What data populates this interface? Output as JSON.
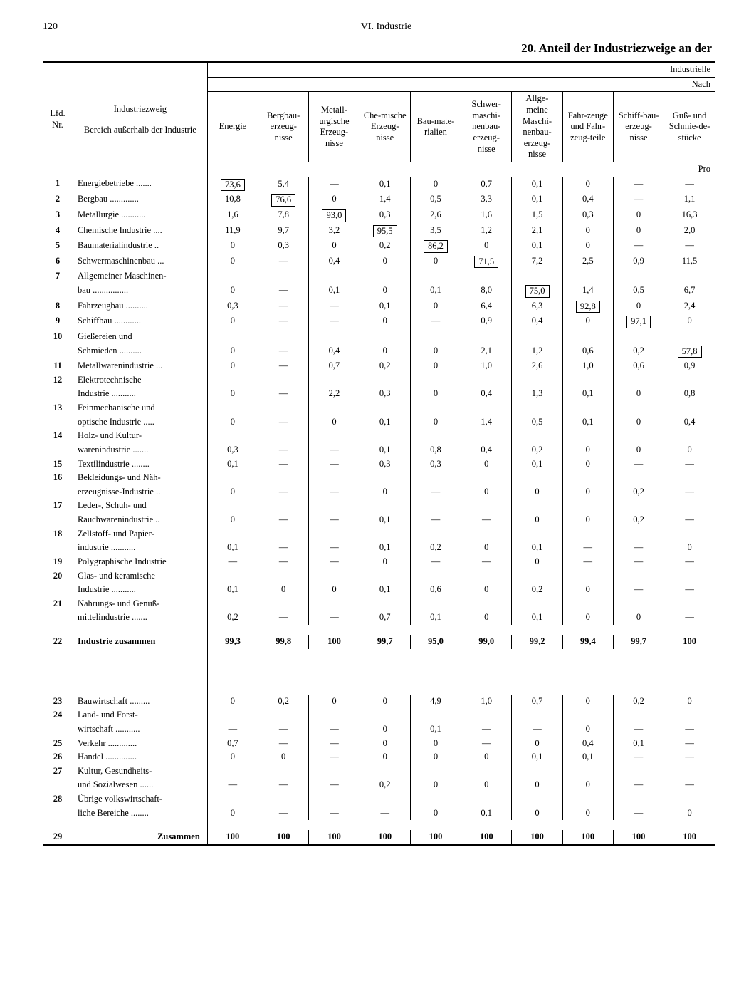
{
  "page_number": "120",
  "chapter": "VI. Industrie",
  "title": "20. Anteil der Industriezweige an der",
  "super_header_right": "Industrielle",
  "sub_header_right": "Nach",
  "unit_right": "Pro",
  "headers": {
    "col_nr": "Lfd.\nNr.",
    "col_name_top": "Industriezweig",
    "col_name_bot": "Bereich außerhalb der Industrie",
    "c1": "Energie",
    "c2": "Bergbau-erzeug-nisse",
    "c3": "Metall-urgische Erzeug-nisse",
    "c4": "Che-mische Erzeug-nisse",
    "c5": "Bau-mate-rialien",
    "c6": "Schwer-maschi-nenbau-erzeug-nisse",
    "c7": "Allge-meine Maschi-nenbau-erzeug-nisse",
    "c8": "Fahr-zeuge und Fahr-zeug-teile",
    "c9": "Schiff-bau-erzeug-nisse",
    "c10": "Guß- und Schmie-de-stücke"
  },
  "rows": [
    {
      "n": "1",
      "name": "Energiebetriebe .......",
      "v": [
        "73,6*",
        "5,4",
        "—",
        "0,1",
        "0",
        "0,7",
        "0,1",
        "0",
        "—",
        "—"
      ]
    },
    {
      "n": "2",
      "name": "Bergbau .............",
      "v": [
        "10,8",
        "76,6*",
        "0",
        "1,4",
        "0,5",
        "3,3",
        "0,1",
        "0,4",
        "—",
        "1,1"
      ]
    },
    {
      "n": "3",
      "name": "Metallurgie ...........",
      "v": [
        "1,6",
        "7,8",
        "93,0*",
        "0,3",
        "2,6",
        "1,6",
        "1,5",
        "0,3",
        "0",
        "16,3"
      ]
    },
    {
      "n": "4",
      "name": "Chemische Industrie ....",
      "v": [
        "11,9",
        "9,7",
        "3,2",
        "95,5*",
        "3,5",
        "1,2",
        "2,1",
        "0",
        "0",
        "2,0"
      ]
    },
    {
      "n": "5",
      "name": "Baumaterialindustrie ..",
      "v": [
        "0",
        "0,3",
        "0",
        "0,2",
        "86,2*",
        "0",
        "0,1",
        "0",
        "—",
        "—"
      ]
    },
    {
      "n": "6",
      "name": "Schwermaschinenbau ...",
      "v": [
        "0",
        "—",
        "0,4",
        "0",
        "0",
        "71,5*",
        "7,2",
        "2,5",
        "0,9",
        "11,5"
      ]
    },
    {
      "n": "7",
      "name": "Allgemeiner Maschinen-",
      "v": [
        "",
        "",
        "",
        "",
        "",
        "",
        "",
        "",
        "",
        ""
      ]
    },
    {
      "n": "",
      "name": "bau ................",
      "v": [
        "0",
        "—",
        "0,1",
        "0",
        "0,1",
        "8,0",
        "75,0*",
        "1,4",
        "0,5",
        "6,7"
      ]
    },
    {
      "n": "8",
      "name": "Fahrzeugbau ..........",
      "v": [
        "0,3",
        "—",
        "—",
        "0,1",
        "0",
        "6,4",
        "6,3",
        "92,8*",
        "0",
        "2,4"
      ]
    },
    {
      "n": "9",
      "name": "Schiffbau ............",
      "v": [
        "0",
        "—",
        "—",
        "0",
        "—",
        "0,9",
        "0,4",
        "0",
        "97,1*",
        "0"
      ]
    },
    {
      "n": "10",
      "name": "Gießereien und",
      "v": [
        "",
        "",
        "",
        "",
        "",
        "",
        "",
        "",
        "",
        ""
      ]
    },
    {
      "n": "",
      "name": "Schmieden ..........",
      "v": [
        "0",
        "—",
        "0,4",
        "0",
        "0",
        "2,1",
        "1,2",
        "0,6",
        "0,2",
        "57,8*"
      ]
    },
    {
      "n": "11",
      "name": "Metallwarenindustrie ...",
      "v": [
        "0",
        "—",
        "0,7",
        "0,2",
        "0",
        "1,0",
        "2,6",
        "1,0",
        "0,6",
        "0,9"
      ]
    },
    {
      "n": "12",
      "name": "Elektrotechnische",
      "v": [
        "",
        "",
        "",
        "",
        "",
        "",
        "",
        "",
        "",
        ""
      ]
    },
    {
      "n": "",
      "name": "Industrie ...........",
      "v": [
        "0",
        "—",
        "2,2",
        "0,3",
        "0",
        "0,4",
        "1,3",
        "0,1",
        "0",
        "0,8"
      ]
    },
    {
      "n": "13",
      "name": "Feinmechanische und",
      "v": [
        "",
        "",
        "",
        "",
        "",
        "",
        "",
        "",
        "",
        ""
      ]
    },
    {
      "n": "",
      "name": "optische Industrie .....",
      "v": [
        "0",
        "—",
        "0",
        "0,1",
        "0",
        "1,4",
        "0,5",
        "0,1",
        "0",
        "0,4"
      ]
    },
    {
      "n": "14",
      "name": "Holz- und Kultur-",
      "v": [
        "",
        "",
        "",
        "",
        "",
        "",
        "",
        "",
        "",
        ""
      ]
    },
    {
      "n": "",
      "name": "warenindustrie .......",
      "v": [
        "0,3",
        "—",
        "—",
        "0,1",
        "0,8",
        "0,4",
        "0,2",
        "0",
        "0",
        "0"
      ]
    },
    {
      "n": "15",
      "name": "Textilindustrie ........",
      "v": [
        "0,1",
        "—",
        "—",
        "0,3",
        "0,3",
        "0",
        "0,1",
        "0",
        "—",
        "—"
      ]
    },
    {
      "n": "16",
      "name": "Bekleidungs- und Näh-",
      "v": [
        "",
        "",
        "",
        "",
        "",
        "",
        "",
        "",
        "",
        ""
      ]
    },
    {
      "n": "",
      "name": "erzeugnisse-Industrie ..",
      "v": [
        "0",
        "—",
        "—",
        "0",
        "—",
        "0",
        "0",
        "0",
        "0,2",
        "—"
      ]
    },
    {
      "n": "17",
      "name": "Leder-, Schuh- und",
      "v": [
        "",
        "",
        "",
        "",
        "",
        "",
        "",
        "",
        "",
        ""
      ]
    },
    {
      "n": "",
      "name": "Rauchwarenindustrie ..",
      "v": [
        "0",
        "—",
        "—",
        "0,1",
        "—",
        "—",
        "0",
        "0",
        "0,2",
        "—"
      ]
    },
    {
      "n": "18",
      "name": "Zellstoff- und Papier-",
      "v": [
        "",
        "",
        "",
        "",
        "",
        "",
        "",
        "",
        "",
        ""
      ]
    },
    {
      "n": "",
      "name": "industrie ...........",
      "v": [
        "0,1",
        "—",
        "—",
        "0,1",
        "0,2",
        "0",
        "0,1",
        "—",
        "—",
        "0"
      ]
    },
    {
      "n": "19",
      "name": "Polygraphische Industrie",
      "v": [
        "—",
        "—",
        "—",
        "0",
        "—",
        "—",
        "0",
        "—",
        "—",
        "—"
      ]
    },
    {
      "n": "20",
      "name": "Glas- und keramische",
      "v": [
        "",
        "",
        "",
        "",
        "",
        "",
        "",
        "",
        "",
        ""
      ]
    },
    {
      "n": "",
      "name": "Industrie ...........",
      "v": [
        "0,1",
        "0",
        "0",
        "0,1",
        "0,6",
        "0",
        "0,2",
        "0",
        "—",
        "—"
      ]
    },
    {
      "n": "21",
      "name": "Nahrungs- und Genuß-",
      "v": [
        "",
        "",
        "",
        "",
        "",
        "",
        "",
        "",
        "",
        ""
      ]
    },
    {
      "n": "",
      "name": "mittelindustrie .......",
      "v": [
        "0,2",
        "—",
        "—",
        "0,7",
        "0,1",
        "0",
        "0,1",
        "0",
        "0",
        "—"
      ]
    }
  ],
  "subtotal": {
    "n": "22",
    "name": "Industrie zusammen",
    "v": [
      "99,3",
      "99,8",
      "100",
      "99,7",
      "95,0",
      "99,0",
      "99,2",
      "99,4",
      "99,7",
      "100"
    ]
  },
  "rows2": [
    {
      "n": "23",
      "name": "Bauwirtschaft .........",
      "v": [
        "0",
        "0,2",
        "0",
        "0",
        "4,9",
        "1,0",
        "0,7",
        "0",
        "0,2",
        "0"
      ]
    },
    {
      "n": "24",
      "name": "Land- und Forst-",
      "v": [
        "",
        "",
        "",
        "",
        "",
        "",
        "",
        "",
        "",
        ""
      ]
    },
    {
      "n": "",
      "name": "wirtschaft ...........",
      "v": [
        "—",
        "—",
        "—",
        "0",
        "0,1",
        "—",
        "—",
        "0",
        "—",
        "—"
      ]
    },
    {
      "n": "25",
      "name": "Verkehr .............",
      "v": [
        "0,7",
        "—",
        "—",
        "0",
        "0",
        "—",
        "0",
        "0,4",
        "0,1",
        "—"
      ]
    },
    {
      "n": "26",
      "name": "Handel ..............",
      "v": [
        "0",
        "0",
        "—",
        "0",
        "0",
        "0",
        "0,1",
        "0,1",
        "—",
        "—"
      ]
    },
    {
      "n": "27",
      "name": "Kultur, Gesundheits-",
      "v": [
        "",
        "",
        "",
        "",
        "",
        "",
        "",
        "",
        "",
        ""
      ]
    },
    {
      "n": "",
      "name": "und Sozialwesen ......",
      "v": [
        "—",
        "—",
        "—",
        "0,2",
        "0",
        "0",
        "0",
        "0",
        "—",
        "—"
      ]
    },
    {
      "n": "28",
      "name": "Übrige volkswirtschaft-",
      "v": [
        "",
        "",
        "",
        "",
        "",
        "",
        "",
        "",
        "",
        ""
      ]
    },
    {
      "n": "",
      "name": "liche Bereiche ........",
      "v": [
        "0",
        "—",
        "—",
        "—",
        "0",
        "0,1",
        "0",
        "0",
        "—",
        "0"
      ]
    }
  ],
  "total": {
    "n": "29",
    "name": "Zusammen",
    "v": [
      "100",
      "100",
      "100",
      "100",
      "100",
      "100",
      "100",
      "100",
      "100",
      "100"
    ]
  }
}
